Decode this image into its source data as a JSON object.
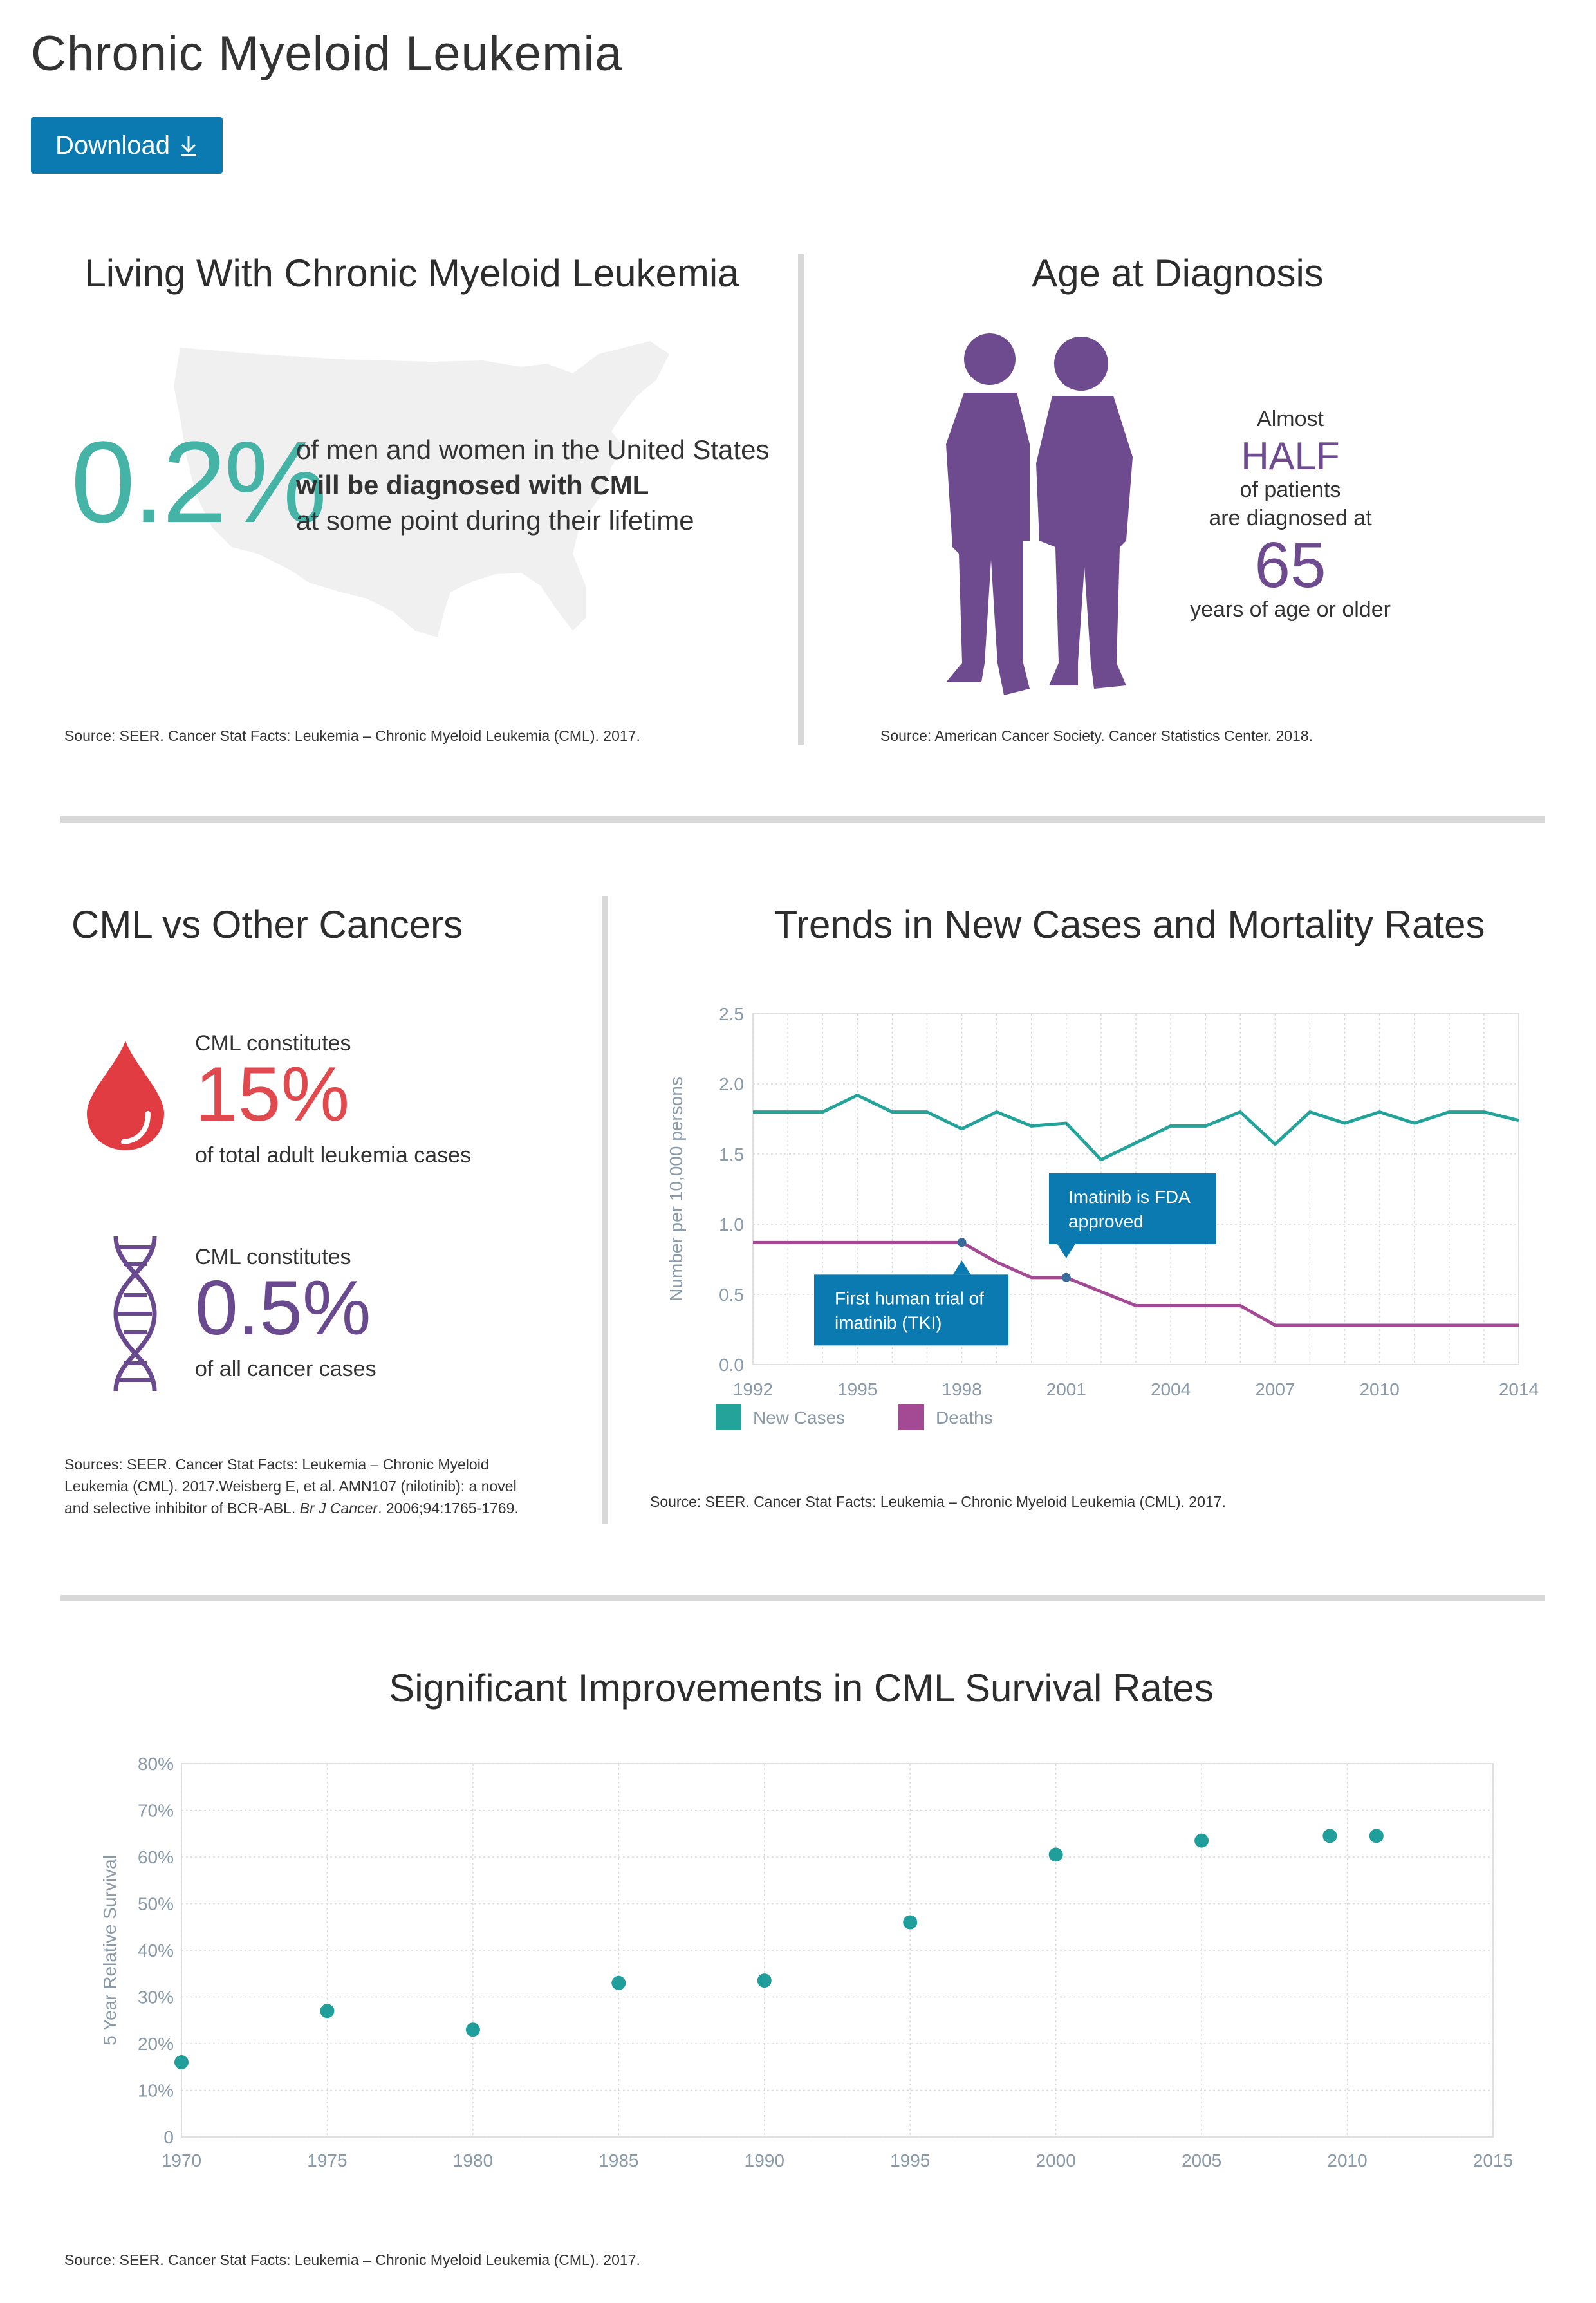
{
  "page": {
    "title": "Chronic Myeloid Leukemia",
    "download_label": "Download"
  },
  "living": {
    "title": "Living With Chronic Myeloid Leukemia",
    "stat": "0.2%",
    "line1": "of men and women in the United States",
    "line2": "will be diagnosed with CML",
    "line3": "at some point during their lifetime",
    "source": "Source: SEER. Cancer Stat Facts: Leukemia – Chronic Myeloid Leukemia (CML). 2017."
  },
  "age": {
    "title": "Age at Diagnosis",
    "line1": "Almost",
    "highlight": "HALF",
    "line2": "of patients",
    "line3": "are diagnosed at",
    "stat": "65",
    "line4": "years of age or older",
    "source": "Source: American Cancer Society. Cancer Statistics Center. 2018."
  },
  "cml_vs": {
    "title": "CML vs Other Cancers",
    "item1": {
      "prefix": "CML constitutes",
      "stat": "15%",
      "suffix": "of total adult leukemia cases",
      "color": "#e04a4f",
      "icon": "blood-drop-icon"
    },
    "item2": {
      "prefix": "CML constitutes",
      "stat": "0.5%",
      "suffix": "of all cancer cases",
      "color": "#6a4a8e",
      "icon": "dna-icon"
    },
    "source_line1": "Sources: SEER. Cancer Stat Facts: Leukemia – Chronic Myeloid",
    "source_line2": "Leukemia (CML). 2017.Weisberg E, et al. AMN107 (nilotinib): a novel",
    "source_line3a": "and selective inhibitor of BCR-ABL.",
    "source_line3b": "Br J Cancer",
    "source_line3c": ". 2006;94:1765-1769."
  },
  "colors": {
    "teal": "#23a39a",
    "purple": "#a44a94",
    "brand_blue": "#0a7ab0",
    "violet": "#6d4b8e",
    "stat_teal": "#46b3a7"
  },
  "chart_data": [
    {
      "type": "line",
      "title": "Trends in New Cases and Mortality Rates",
      "ylabel": "Number per 10,000 persons",
      "xlabel": "",
      "xlim": [
        1992,
        2014
      ],
      "ylim": [
        0,
        2.5
      ],
      "x_ticks": [
        "1992",
        "1995",
        "1998",
        "2001",
        "2004",
        "2007",
        "2010",
        "2014"
      ],
      "y_ticks": [
        "0.0",
        "0.5",
        "1.0",
        "1.5",
        "2.0",
        "2.5"
      ],
      "grid": true,
      "legend": "bottom-left",
      "series": [
        {
          "name": "New Cases",
          "color": "#23a39a",
          "x": [
            1992,
            1993,
            1994,
            1995,
            1996,
            1997,
            1998,
            1999,
            2000,
            2001,
            2002,
            2003,
            2004,
            2005,
            2006,
            2007,
            2008,
            2009,
            2010,
            2011,
            2012,
            2013,
            2014
          ],
          "y": [
            1.8,
            1.8,
            1.8,
            1.92,
            1.8,
            1.8,
            1.68,
            1.8,
            1.7,
            1.72,
            1.46,
            1.58,
            1.7,
            1.7,
            1.8,
            1.57,
            1.8,
            1.72,
            1.8,
            1.72,
            1.8,
            1.8,
            1.74
          ]
        },
        {
          "name": "Deaths",
          "color": "#a44a94",
          "x": [
            1992,
            1998,
            1999,
            2000,
            2001,
            2002,
            2003,
            2004,
            2005,
            2006,
            2007,
            2008,
            2014
          ],
          "y": [
            0.87,
            0.87,
            0.73,
            0.62,
            0.62,
            0.52,
            0.42,
            0.42,
            0.42,
            0.42,
            0.28,
            0.28,
            0.28
          ]
        }
      ],
      "annotations": [
        {
          "text_line1": "First human trial of",
          "text_line2": "imatinib (TKI)",
          "x": 1998,
          "y": 0.87
        },
        {
          "text_line1": "Imatinib is FDA",
          "text_line2": "approved",
          "x": 2001,
          "y": 0.62
        }
      ],
      "source": "Source: SEER. Cancer Stat Facts: Leukemia – Chronic Myeloid Leukemia (CML). 2017."
    },
    {
      "type": "scatter",
      "title": "Significant Improvements in CML Survival Rates",
      "ylabel": "5 Year Relative Survival",
      "xlabel": "",
      "xlim": [
        1970,
        2015
      ],
      "ylim": [
        0,
        80
      ],
      "x_ticks": [
        "1970",
        "1975",
        "1980",
        "1985",
        "1990",
        "1995",
        "2000",
        "2005",
        "2010",
        "2015"
      ],
      "y_ticks": [
        "0",
        "10%",
        "20%",
        "30%",
        "40%",
        "50%",
        "60%",
        "70%",
        "80%"
      ],
      "grid": true,
      "series": [
        {
          "color": "#1f9e9b",
          "x": [
            1970,
            1975,
            1980,
            1985,
            1990,
            1995,
            2000,
            2005,
            2009.4,
            2011
          ],
          "y": [
            16,
            27,
            23,
            33,
            33.5,
            46,
            60.5,
            63.5,
            64.5,
            64.5
          ]
        }
      ],
      "source": "Source: SEER. Cancer Stat Facts: Leukemia – Chronic Myeloid Leukemia (CML). 2017."
    }
  ]
}
